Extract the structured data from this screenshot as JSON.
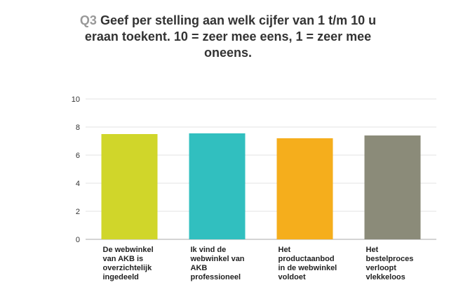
{
  "question_number": "Q3",
  "title": "Geef per stelling aan welk cijfer van 1 t/m 10 u eraan toekent. 10 = zeer mee eens, 1 = zeer mee oneens.",
  "chart_data": {
    "type": "bar",
    "categories": [
      "De webwinkel van AKB is overzichtelijk ingedeeld",
      "Ik vind de webwinkel van AKB professioneel",
      "Het productaanbod in de webwinkel voldoet",
      "Het bestelproces verloopt vlekkeloos"
    ],
    "values": [
      7.5,
      7.55,
      7.2,
      7.4
    ],
    "colors": [
      "#d0d62a",
      "#31bfbf",
      "#f5ae1c",
      "#8b8b79"
    ],
    "ylim": [
      0,
      10
    ],
    "yticks": [
      "0",
      "2",
      "4",
      "6",
      "8",
      "10"
    ],
    "grid": true
  }
}
